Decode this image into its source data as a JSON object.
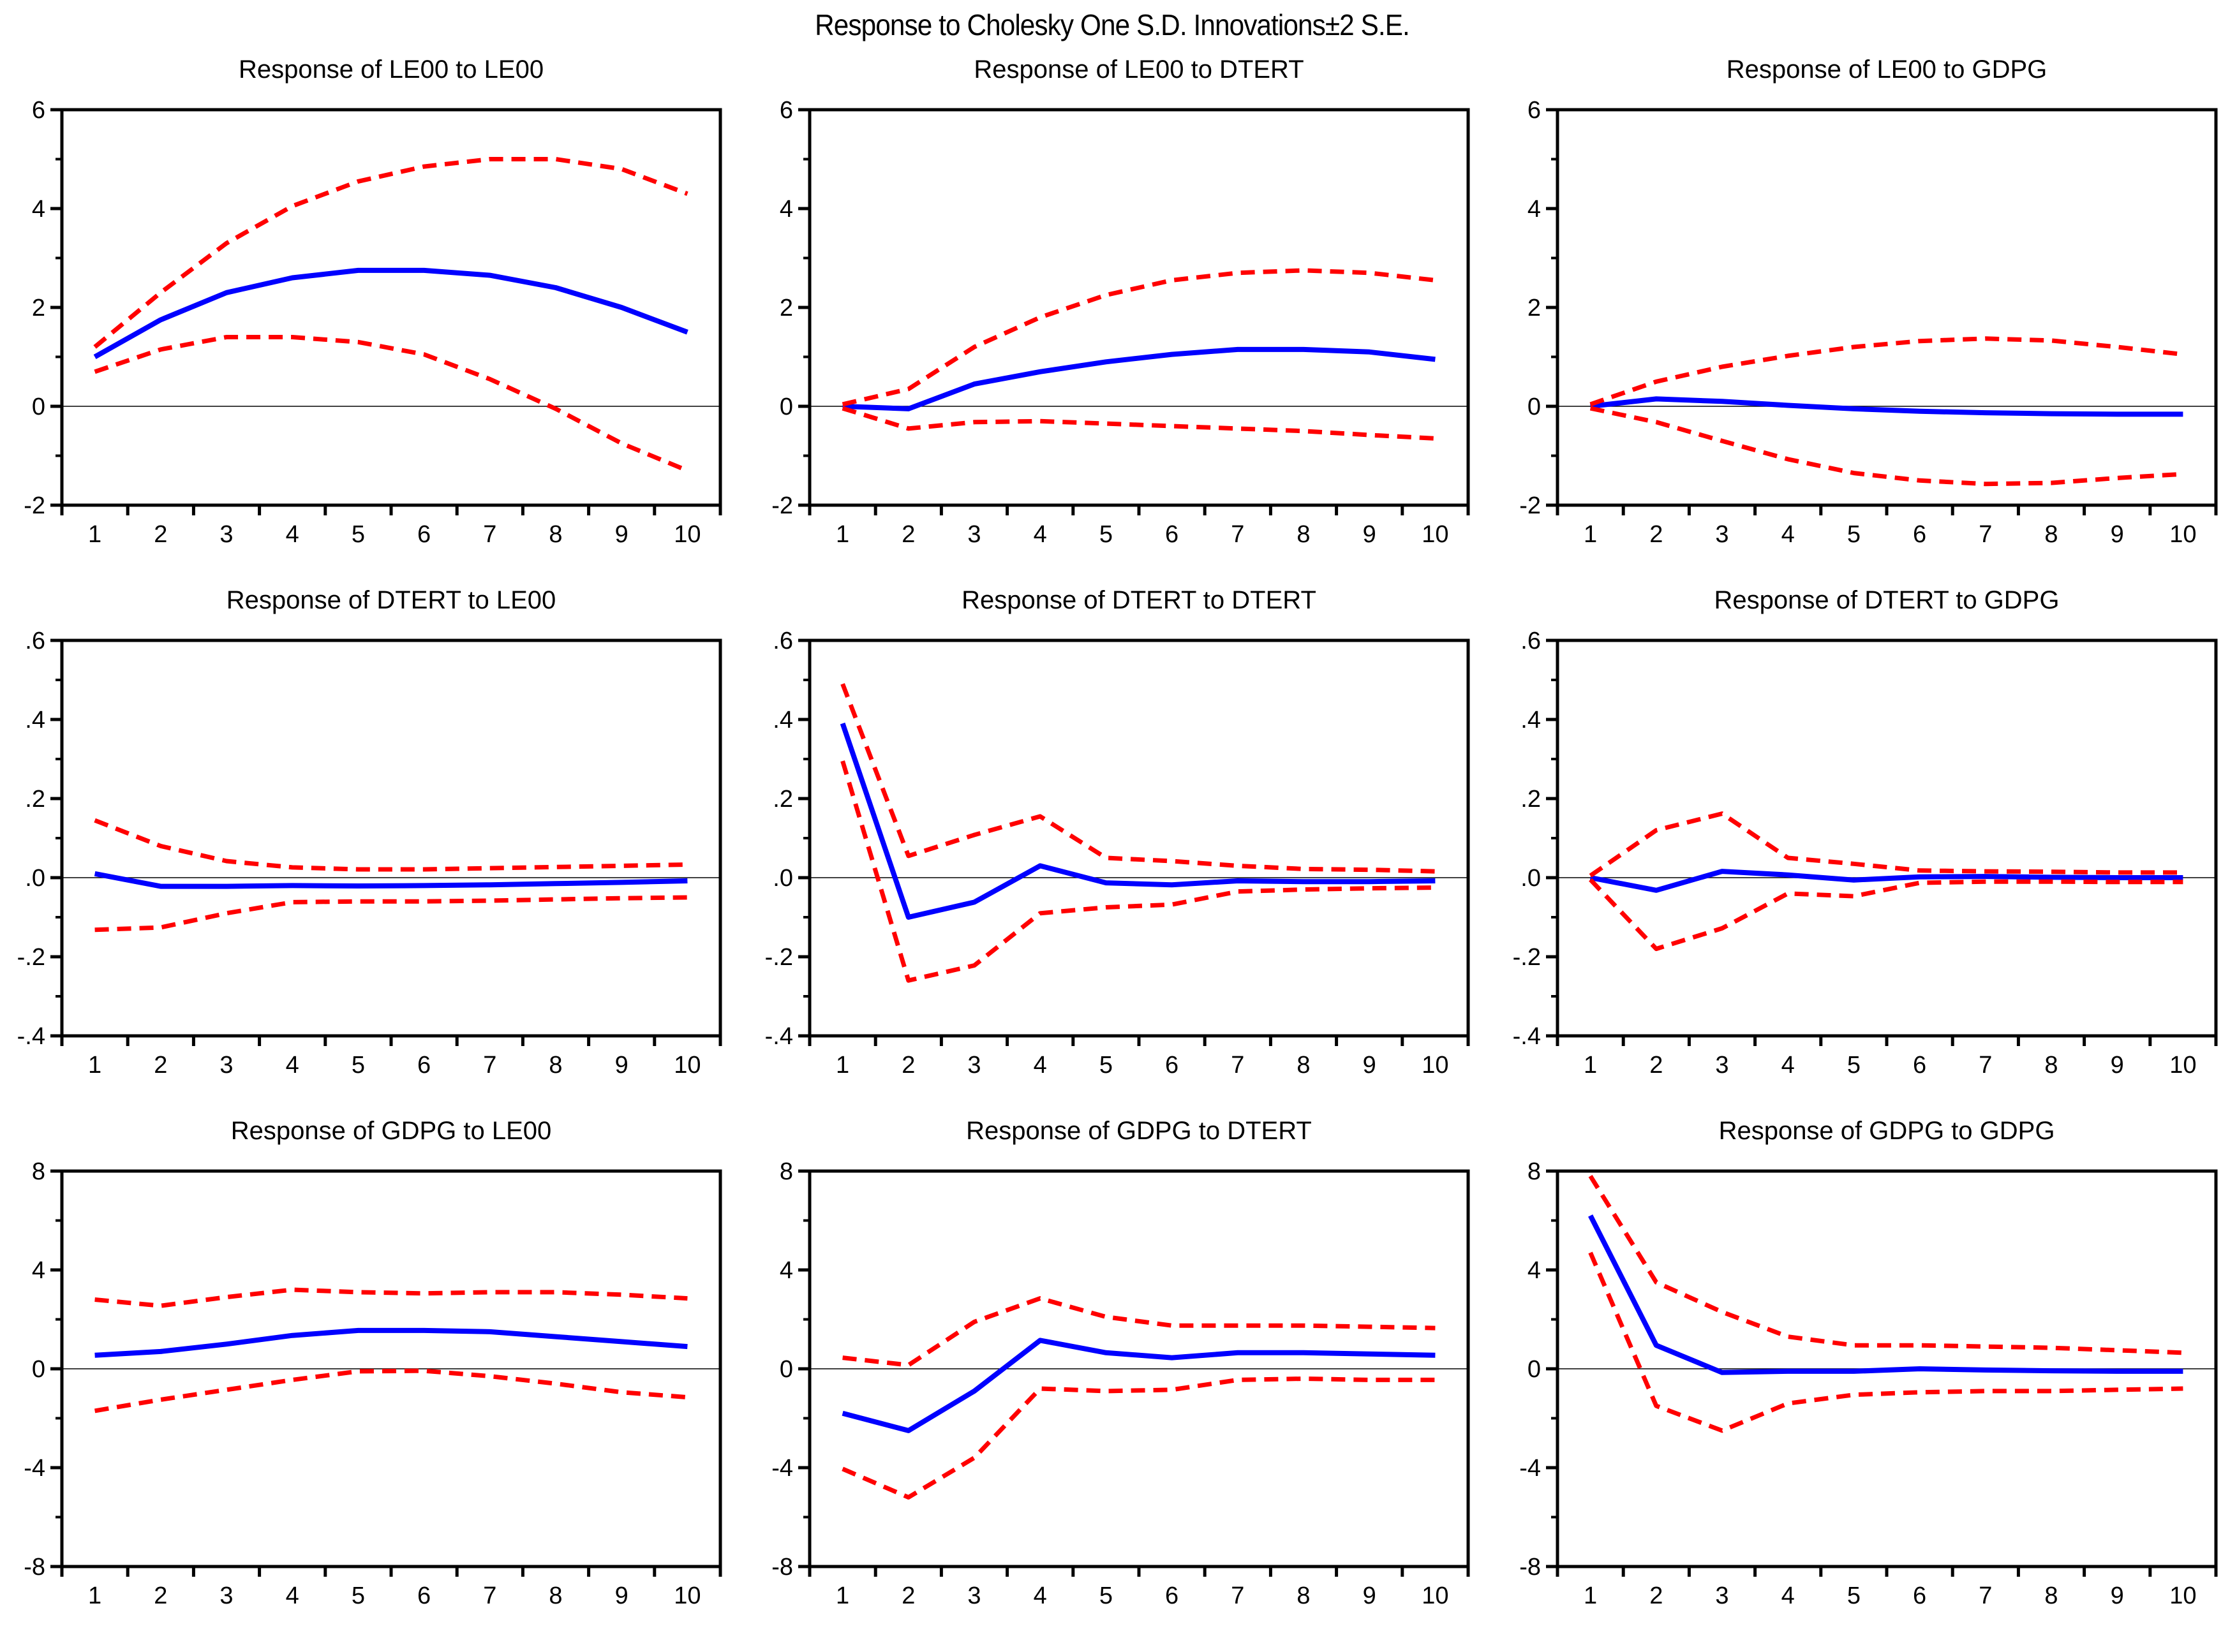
{
  "page_title": "Response to Cholesky One S.D. Innovations±2 S.E.",
  "colors": {
    "response_line": "#0000ff",
    "band_line": "#ff0000",
    "axis": "#000000",
    "zero_line": "#000000"
  },
  "chart_data": [
    {
      "type": "line",
      "title": "Response of LE00 to LE00",
      "x": [
        1,
        2,
        3,
        4,
        5,
        6,
        7,
        8,
        9,
        10
      ],
      "xtick_labels": [
        "1",
        "2",
        "3",
        "4",
        "5",
        "6",
        "7",
        "8",
        "9",
        "10"
      ],
      "ylim": [
        -2,
        6
      ],
      "ytick_values": [
        6,
        4,
        2,
        0,
        -2
      ],
      "ytick_labels": [
        "6",
        "4",
        "2",
        "0",
        "-2"
      ],
      "grid": false,
      "legend": "none",
      "series": [
        {
          "name": "response",
          "color": "#0000ff",
          "style": "solid",
          "values": [
            1.0,
            1.75,
            2.3,
            2.6,
            2.75,
            2.75,
            2.65,
            2.4,
            2.0,
            1.5
          ]
        },
        {
          "name": "upper-2se",
          "color": "#ff0000",
          "style": "dashed",
          "values": [
            1.2,
            2.3,
            3.3,
            4.05,
            4.55,
            4.85,
            5.0,
            5.0,
            4.8,
            4.3
          ]
        },
        {
          "name": "lower-2se",
          "color": "#ff0000",
          "style": "dashed",
          "values": [
            0.7,
            1.15,
            1.4,
            1.4,
            1.3,
            1.05,
            0.55,
            -0.05,
            -0.75,
            -1.3
          ]
        }
      ]
    },
    {
      "type": "line",
      "title": "Response of LE00 to DTERT",
      "x": [
        1,
        2,
        3,
        4,
        5,
        6,
        7,
        8,
        9,
        10
      ],
      "xtick_labels": [
        "1",
        "2",
        "3",
        "4",
        "5",
        "6",
        "7",
        "8",
        "9",
        "10"
      ],
      "ylim": [
        -2,
        6
      ],
      "ytick_values": [
        6,
        4,
        2,
        0,
        -2
      ],
      "ytick_labels": [
        "6",
        "4",
        "2",
        "0",
        "-2"
      ],
      "grid": false,
      "legend": "none",
      "series": [
        {
          "name": "response",
          "color": "#0000ff",
          "style": "solid",
          "values": [
            0.0,
            -0.05,
            0.45,
            0.7,
            0.9,
            1.05,
            1.15,
            1.15,
            1.1,
            0.95
          ]
        },
        {
          "name": "upper-2se",
          "color": "#ff0000",
          "style": "dashed",
          "values": [
            0.04,
            0.35,
            1.2,
            1.8,
            2.25,
            2.55,
            2.7,
            2.75,
            2.7,
            2.55
          ]
        },
        {
          "name": "lower-2se",
          "color": "#ff0000",
          "style": "dashed",
          "values": [
            -0.04,
            -0.45,
            -0.32,
            -0.3,
            -0.35,
            -0.4,
            -0.45,
            -0.5,
            -0.58,
            -0.65
          ]
        }
      ]
    },
    {
      "type": "line",
      "title": "Response of LE00 to GDPG",
      "x": [
        1,
        2,
        3,
        4,
        5,
        6,
        7,
        8,
        9,
        10
      ],
      "xtick_labels": [
        "1",
        "2",
        "3",
        "4",
        "5",
        "6",
        "7",
        "8",
        "9",
        "10"
      ],
      "ylim": [
        -2,
        6
      ],
      "ytick_values": [
        6,
        4,
        2,
        0,
        -2
      ],
      "ytick_labels": [
        "6",
        "4",
        "2",
        "0",
        "-2"
      ],
      "grid": false,
      "legend": "none",
      "series": [
        {
          "name": "response",
          "color": "#0000ff",
          "style": "solid",
          "values": [
            0.0,
            0.15,
            0.1,
            0.02,
            -0.05,
            -0.1,
            -0.13,
            -0.15,
            -0.16,
            -0.16
          ]
        },
        {
          "name": "upper-2se",
          "color": "#ff0000",
          "style": "dashed",
          "values": [
            0.04,
            0.5,
            0.8,
            1.02,
            1.2,
            1.32,
            1.37,
            1.33,
            1.2,
            1.05
          ]
        },
        {
          "name": "lower-2se",
          "color": "#ff0000",
          "style": "dashed",
          "values": [
            -0.04,
            -0.32,
            -0.7,
            -1.07,
            -1.35,
            -1.5,
            -1.57,
            -1.55,
            -1.45,
            -1.37
          ]
        }
      ]
    },
    {
      "type": "line",
      "title": "Response of DTERT to LE00",
      "x": [
        1,
        2,
        3,
        4,
        5,
        6,
        7,
        8,
        9,
        10
      ],
      "xtick_labels": [
        "1",
        "2",
        "3",
        "4",
        "5",
        "6",
        "7",
        "8",
        "9",
        "10"
      ],
      "ylim": [
        -0.4,
        0.6
      ],
      "ytick_values": [
        0.6,
        0.4,
        0.2,
        0.0,
        -0.2,
        -0.4
      ],
      "ytick_labels": [
        ".6",
        ".4",
        ".2",
        ".0",
        "-.2",
        "-.4"
      ],
      "grid": false,
      "legend": "none",
      "series": [
        {
          "name": "response",
          "color": "#0000ff",
          "style": "solid",
          "values": [
            0.01,
            -0.022,
            -0.022,
            -0.02,
            -0.021,
            -0.02,
            -0.018,
            -0.015,
            -0.012,
            -0.008
          ]
        },
        {
          "name": "upper-2se",
          "color": "#ff0000",
          "style": "dashed",
          "values": [
            0.145,
            0.08,
            0.042,
            0.026,
            0.021,
            0.021,
            0.024,
            0.027,
            0.03,
            0.033
          ]
        },
        {
          "name": "lower-2se",
          "color": "#ff0000",
          "style": "dashed",
          "values": [
            -0.132,
            -0.126,
            -0.09,
            -0.062,
            -0.06,
            -0.06,
            -0.058,
            -0.055,
            -0.052,
            -0.05
          ]
        }
      ]
    },
    {
      "type": "line",
      "title": "Response of DTERT to DTERT",
      "x": [
        1,
        2,
        3,
        4,
        5,
        6,
        7,
        8,
        9,
        10
      ],
      "xtick_labels": [
        "1",
        "2",
        "3",
        "4",
        "5",
        "6",
        "7",
        "8",
        "9",
        "10"
      ],
      "ylim": [
        -0.4,
        0.6
      ],
      "ytick_values": [
        0.6,
        0.4,
        0.2,
        0.0,
        -0.2,
        -0.4
      ],
      "ytick_labels": [
        ".6",
        ".4",
        ".2",
        ".0",
        "-.2",
        "-.4"
      ],
      "grid": false,
      "legend": "none",
      "series": [
        {
          "name": "response",
          "color": "#0000ff",
          "style": "solid",
          "values": [
            0.39,
            -0.1,
            -0.062,
            0.03,
            -0.013,
            -0.018,
            -0.008,
            -0.01,
            -0.01,
            -0.008
          ]
        },
        {
          "name": "upper-2se",
          "color": "#ff0000",
          "style": "dashed",
          "values": [
            0.49,
            0.055,
            0.108,
            0.155,
            0.05,
            0.042,
            0.03,
            0.022,
            0.02,
            0.016
          ]
        },
        {
          "name": "lower-2se",
          "color": "#ff0000",
          "style": "dashed",
          "values": [
            0.295,
            -0.26,
            -0.222,
            -0.09,
            -0.075,
            -0.068,
            -0.035,
            -0.03,
            -0.027,
            -0.025
          ]
        }
      ]
    },
    {
      "type": "line",
      "title": "Response of DTERT to GDPG",
      "x": [
        1,
        2,
        3,
        4,
        5,
        6,
        7,
        8,
        9,
        10
      ],
      "xtick_labels": [
        "1",
        "2",
        "3",
        "4",
        "5",
        "6",
        "7",
        "8",
        "9",
        "10"
      ],
      "ylim": [
        -0.4,
        0.6
      ],
      "ytick_values": [
        0.6,
        0.4,
        0.2,
        0.0,
        -0.2,
        -0.4
      ],
      "ytick_labels": [
        ".6",
        ".4",
        ".2",
        ".0",
        "-.2",
        "-.4"
      ],
      "grid": false,
      "legend": "none",
      "series": [
        {
          "name": "response",
          "color": "#0000ff",
          "style": "solid",
          "values": [
            0.0,
            -0.032,
            0.016,
            0.007,
            -0.006,
            0.002,
            0.003,
            0.001,
            0.0,
            0.0
          ]
        },
        {
          "name": "upper-2se",
          "color": "#ff0000",
          "style": "dashed",
          "values": [
            0.005,
            0.12,
            0.162,
            0.05,
            0.035,
            0.018,
            0.016,
            0.015,
            0.013,
            0.013
          ]
        },
        {
          "name": "lower-2se",
          "color": "#ff0000",
          "style": "dashed",
          "values": [
            -0.005,
            -0.18,
            -0.128,
            -0.04,
            -0.047,
            -0.013,
            -0.01,
            -0.01,
            -0.011,
            -0.011
          ]
        }
      ]
    },
    {
      "type": "line",
      "title": "Response of GDPG to LE00",
      "x": [
        1,
        2,
        3,
        4,
        5,
        6,
        7,
        8,
        9,
        10
      ],
      "xtick_labels": [
        "1",
        "2",
        "3",
        "4",
        "5",
        "6",
        "7",
        "8",
        "9",
        "10"
      ],
      "ylim": [
        -8,
        8
      ],
      "ytick_values": [
        8,
        4,
        0,
        -4,
        -8
      ],
      "ytick_labels": [
        "8",
        "4",
        "0",
        "-4",
        "-8"
      ],
      "grid": false,
      "legend": "none",
      "series": [
        {
          "name": "response",
          "color": "#0000ff",
          "style": "solid",
          "values": [
            0.55,
            0.7,
            1.0,
            1.35,
            1.55,
            1.55,
            1.5,
            1.3,
            1.1,
            0.9
          ]
        },
        {
          "name": "upper-2se",
          "color": "#ff0000",
          "style": "dashed",
          "values": [
            2.8,
            2.55,
            2.9,
            3.2,
            3.1,
            3.05,
            3.1,
            3.1,
            3.0,
            2.85
          ]
        },
        {
          "name": "lower-2se",
          "color": "#ff0000",
          "style": "dashed",
          "values": [
            -1.7,
            -1.25,
            -0.85,
            -0.45,
            -0.1,
            -0.08,
            -0.3,
            -0.6,
            -0.95,
            -1.15
          ]
        }
      ]
    },
    {
      "type": "line",
      "title": "Response of GDPG to DTERT",
      "x": [
        1,
        2,
        3,
        4,
        5,
        6,
        7,
        8,
        9,
        10
      ],
      "xtick_labels": [
        "1",
        "2",
        "3",
        "4",
        "5",
        "6",
        "7",
        "8",
        "9",
        "10"
      ],
      "ylim": [
        -8,
        8
      ],
      "ytick_values": [
        8,
        4,
        0,
        -4,
        -8
      ],
      "ytick_labels": [
        "8",
        "4",
        "0",
        "-4",
        "-8"
      ],
      "grid": false,
      "legend": "none",
      "series": [
        {
          "name": "response",
          "color": "#0000ff",
          "style": "solid",
          "values": [
            -1.8,
            -2.5,
            -0.9,
            1.15,
            0.65,
            0.45,
            0.65,
            0.65,
            0.6,
            0.55
          ]
        },
        {
          "name": "upper-2se",
          "color": "#ff0000",
          "style": "dashed",
          "values": [
            0.45,
            0.15,
            1.9,
            2.85,
            2.1,
            1.75,
            1.75,
            1.75,
            1.7,
            1.65
          ]
        },
        {
          "name": "lower-2se",
          "color": "#ff0000",
          "style": "dashed",
          "values": [
            -4.05,
            -5.2,
            -3.6,
            -0.8,
            -0.9,
            -0.85,
            -0.45,
            -0.4,
            -0.45,
            -0.45
          ]
        }
      ]
    },
    {
      "type": "line",
      "title": "Response of GDPG to GDPG",
      "x": [
        1,
        2,
        3,
        4,
        5,
        6,
        7,
        8,
        9,
        10
      ],
      "xtick_labels": [
        "1",
        "2",
        "3",
        "4",
        "5",
        "6",
        "7",
        "8",
        "9",
        "10"
      ],
      "ylim": [
        -8,
        8
      ],
      "ytick_values": [
        8,
        4,
        0,
        -4,
        -8
      ],
      "ytick_labels": [
        "8",
        "4",
        "0",
        "-4",
        "-8"
      ],
      "grid": false,
      "legend": "none",
      "series": [
        {
          "name": "response",
          "color": "#0000ff",
          "style": "solid",
          "values": [
            6.2,
            0.95,
            -0.15,
            -0.1,
            -0.1,
            0.0,
            -0.05,
            -0.08,
            -0.1,
            -0.1
          ]
        },
        {
          "name": "upper-2se",
          "color": "#ff0000",
          "style": "dashed",
          "values": [
            7.8,
            3.5,
            2.3,
            1.3,
            0.95,
            0.95,
            0.9,
            0.85,
            0.75,
            0.65
          ]
        },
        {
          "name": "lower-2se",
          "color": "#ff0000",
          "style": "dashed",
          "values": [
            4.7,
            -1.5,
            -2.5,
            -1.4,
            -1.05,
            -0.95,
            -0.9,
            -0.9,
            -0.85,
            -0.8
          ]
        }
      ]
    }
  ]
}
